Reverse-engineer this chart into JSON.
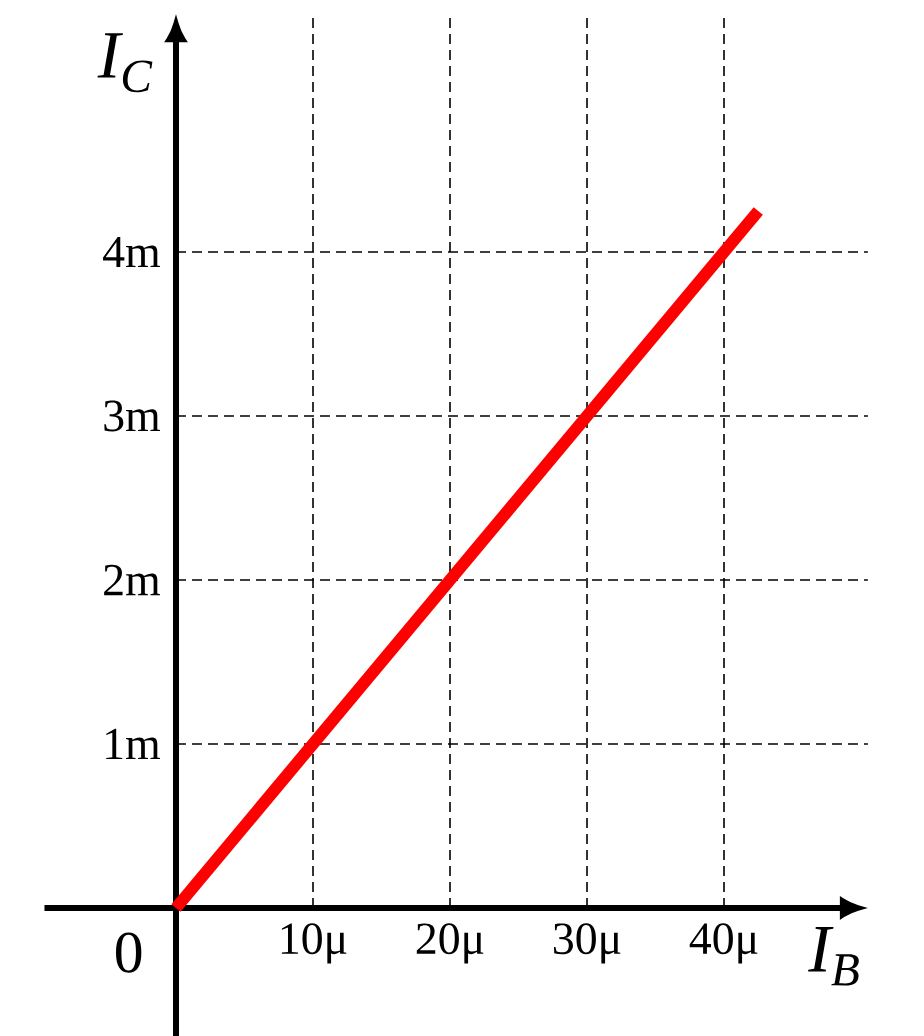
{
  "chart_data": {
    "type": "line",
    "xlabel": "I$_{B}$",
    "ylabel": "I$_{C}$",
    "x": [
      0,
      42.5
    ],
    "series": [
      {
        "color": "#ff0000",
        "values": [
          0,
          4.25
        ]
      }
    ],
    "xlim": [
      -9.6,
      50.5
    ],
    "ylim": [
      -0.78,
      5.45
    ],
    "annotations": [
      "0"
    ],
    "xticks": [
      {
        "value": 10,
        "label": "10μ"
      },
      {
        "value": 20,
        "label": "20μ"
      },
      {
        "value": 30,
        "label": "30μ"
      },
      {
        "value": 40,
        "label": "40μ"
      }
    ],
    "yticks": [
      {
        "value": 1,
        "label": "1m"
      },
      {
        "value": 2,
        "label": "2m"
      },
      {
        "value": 3,
        "label": "3m"
      },
      {
        "value": 4,
        "label": "4m"
      }
    ],
    "grid": true,
    "marker": "none",
    "line_style": "solid"
  }
}
